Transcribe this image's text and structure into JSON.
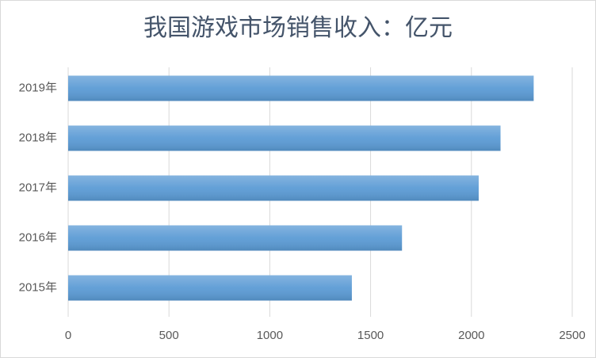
{
  "chart_data": {
    "type": "bar",
    "orientation": "horizontal",
    "title": "我国游戏市场销售收入：亿元",
    "categories": [
      "2015年",
      "2016年",
      "2017年",
      "2018年",
      "2019年"
    ],
    "values": [
      1407.0,
      1655.7,
      2036.1,
      2144.4,
      2308.8
    ],
    "color": "#5b9bd5",
    "xlim": [
      0,
      2500
    ],
    "xticks": [
      0,
      500,
      1000,
      1500,
      2000,
      2500
    ],
    "grid": true
  }
}
